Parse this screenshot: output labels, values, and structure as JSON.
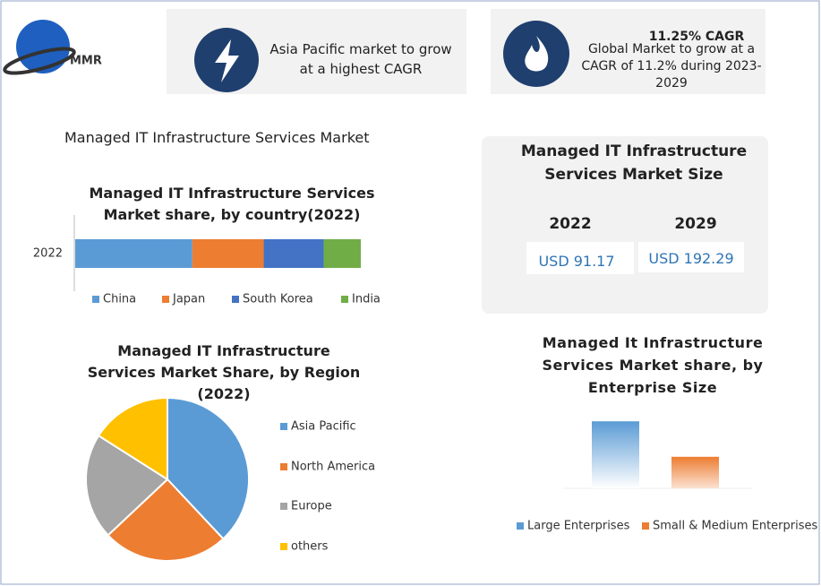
{
  "header": {
    "logo": "MMR",
    "cards": [
      {
        "text": "Asia Pacific market to grow at a highest CAGR"
      },
      {
        "highlight": "11.25% CAGR",
        "text": "Global Market to grow at a CAGR of 11.2% during 2023-2029"
      }
    ]
  },
  "title": "Managed IT Infrastructure Services Market",
  "market_size": {
    "title": "Managed IT Infrastructure Services Market Size",
    "years": [
      "2022",
      "2029"
    ],
    "values": [
      "USD 91.17",
      "USD 192.29"
    ]
  },
  "chart_data": [
    {
      "type": "stacked-hbar",
      "title": "Managed IT Infrastructure Services Market share, by country(2022)",
      "categories": [
        "2022"
      ],
      "series": [
        {
          "name": "China",
          "color": "#5b9bd5",
          "values": [
            41
          ]
        },
        {
          "name": "Japan",
          "color": "#ed7d31",
          "values": [
            25
          ]
        },
        {
          "name": "South Korea",
          "color": "#4472c4",
          "values": [
            21
          ]
        },
        {
          "name": "India",
          "color": "#70ad47",
          "values": [
            13
          ]
        }
      ]
    },
    {
      "type": "pie",
      "title": "Managed IT Infrastructure Services Market Share, by Region (2022)",
      "categories": [
        "Asia Pacific",
        "North America",
        "Europe",
        "others"
      ],
      "values": [
        38,
        25,
        21,
        16
      ],
      "colors": [
        "#5b9bd5",
        "#ed7d31",
        "#a5a5a5",
        "#ffc000"
      ]
    },
    {
      "type": "bar",
      "title": "Managed It Infrastructure Services Market share, by Enterprise Size",
      "categories": [
        "Large Enterprises",
        "Small & Medium Enterprises"
      ],
      "values": [
        68,
        32
      ],
      "colors": [
        "#5b9bd5",
        "#ed7d31"
      ]
    }
  ]
}
